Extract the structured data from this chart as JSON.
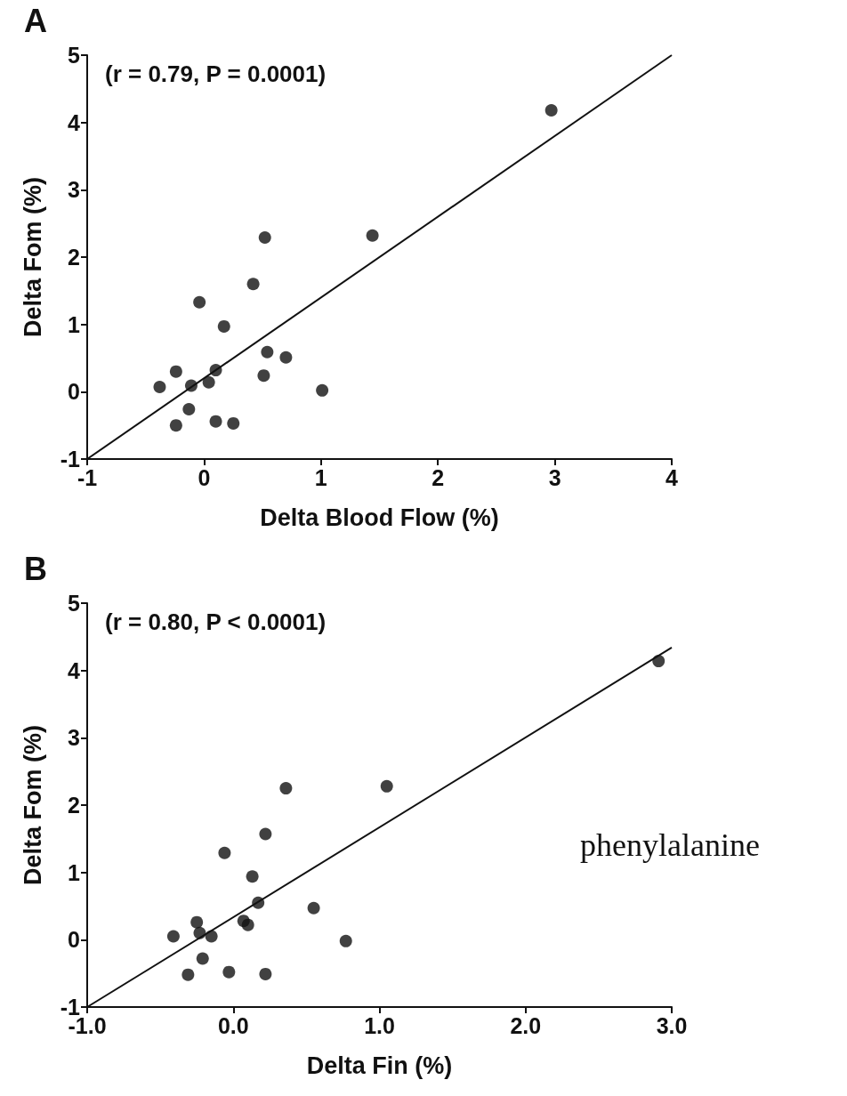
{
  "chart_data": [
    {
      "type": "scatter",
      "title": "A",
      "xlabel": "Delta Blood Flow (%)",
      "ylabel": "Delta Fom (%)",
      "annotations": [
        "(r = 0.79, P = 0.0001)"
      ],
      "xlim": [
        -1,
        4
      ],
      "xticks": [
        -1,
        0,
        1,
        2,
        3,
        4
      ],
      "ylim": [
        -1,
        5
      ],
      "yticks": [
        -1,
        0,
        1,
        2,
        3,
        4,
        5
      ],
      "grid": false,
      "series": [
        {
          "marker": "circle",
          "color": "#111111",
          "x": [
            -0.38,
            -0.24,
            -0.24,
            -0.13,
            -0.11,
            -0.04,
            0.04,
            0.1,
            0.1,
            0.17,
            0.25,
            0.42,
            0.51,
            0.52,
            0.54,
            0.7,
            1.01,
            1.44,
            2.97
          ],
          "values": [
            0.07,
            0.3,
            -0.5,
            -0.26,
            0.09,
            1.33,
            0.14,
            0.32,
            -0.44,
            0.97,
            -0.47,
            1.6,
            0.24,
            2.29,
            0.59,
            0.51,
            0.02,
            2.32,
            4.18
          ]
        },
        {
          "type": "line",
          "marker": "none",
          "color": "#111111",
          "line_style": "solid",
          "x": [
            -1,
            4
          ],
          "values": [
            -1,
            5
          ]
        }
      ]
    },
    {
      "type": "scatter",
      "title": "B",
      "xlabel": "Delta Fin (%)",
      "ylabel": "Delta Fom (%)",
      "annotations": [
        "(r = 0.80, P < 0.0001)",
        "phenylalanine"
      ],
      "xlim": [
        -1,
        3
      ],
      "xticks": [
        {
          "value": -1,
          "label": "-1.0"
        },
        {
          "value": 0,
          "label": "0.0"
        },
        {
          "value": 1,
          "label": "1.0"
        },
        {
          "value": 2,
          "label": "2.0"
        },
        {
          "value": 3,
          "label": "3.0"
        }
      ],
      "ylim": [
        -1,
        5
      ],
      "yticks": [
        -1,
        0,
        1,
        2,
        3,
        4,
        5
      ],
      "grid": false,
      "series": [
        {
          "marker": "circle",
          "color": "#111111",
          "x": [
            -0.41,
            -0.25,
            -0.23,
            -0.15,
            -0.21,
            -0.31,
            -0.03,
            0.22,
            -0.06,
            0.13,
            0.17,
            0.07,
            0.1,
            0.22,
            0.36,
            0.55,
            0.77,
            1.05,
            2.91
          ],
          "values": [
            0.05,
            0.26,
            0.1,
            0.05,
            -0.28,
            -0.52,
            -0.48,
            -0.51,
            1.29,
            0.94,
            0.55,
            0.28,
            0.22,
            1.57,
            2.25,
            0.47,
            -0.02,
            2.28,
            4.14
          ]
        },
        {
          "type": "line",
          "marker": "none",
          "color": "#111111",
          "line_style": "solid",
          "x": [
            -1,
            3
          ],
          "values": [
            -1,
            4.34
          ]
        }
      ]
    }
  ]
}
